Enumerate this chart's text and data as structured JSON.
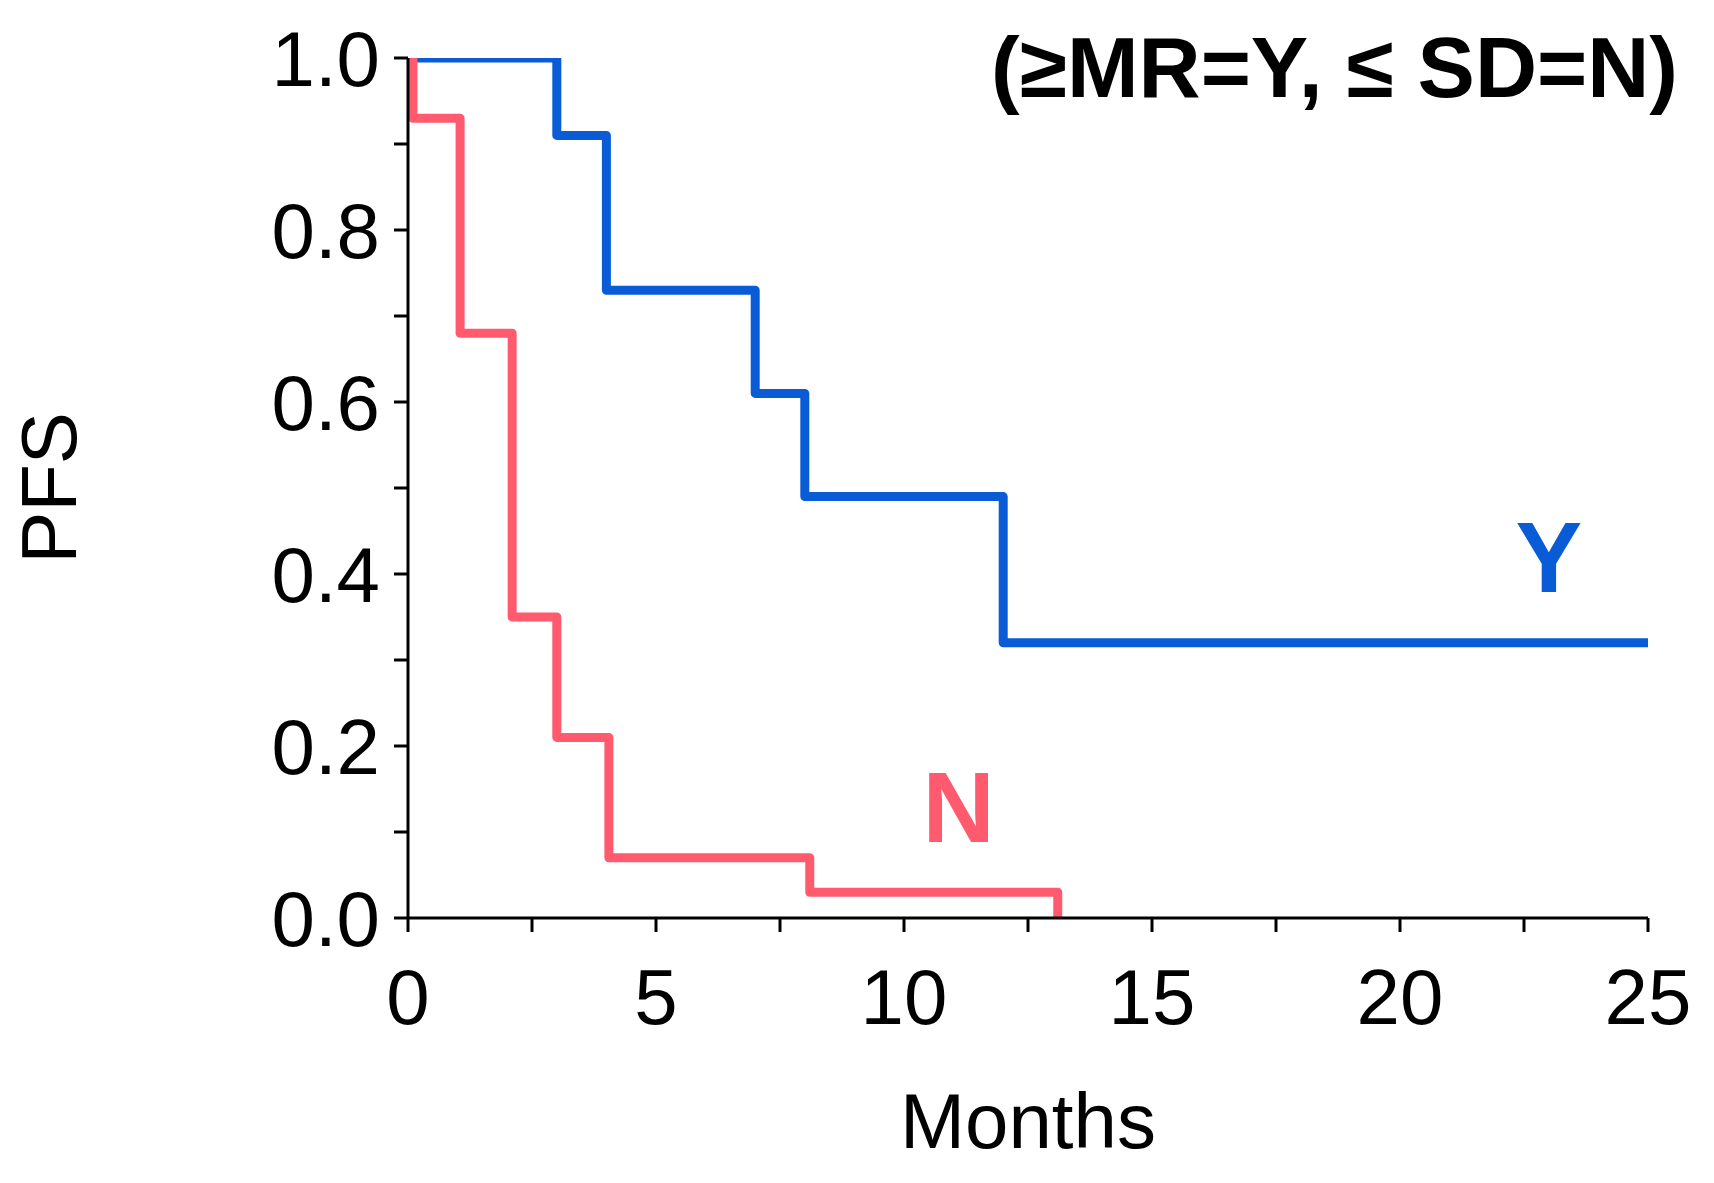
{
  "chart_data": {
    "type": "step",
    "title": "(≥MR=Y, ≤ SD=N)",
    "xlabel": "Months",
    "ylabel": "PFS",
    "xlim": [
      0,
      25
    ],
    "ylim": [
      0,
      1
    ],
    "xticks": [
      0,
      {
        "value": 2.5,
        "label": null
      },
      5,
      {
        "value": 7.5,
        "label": null
      },
      10,
      {
        "value": 12.5,
        "label": null
      },
      15,
      {
        "value": 17.5,
        "label": null
      },
      20,
      {
        "value": 22.5,
        "label": null
      },
      25
    ],
    "yticks": [
      {
        "value": 0,
        "label": "0.0"
      },
      {
        "value": 0.1,
        "label": null
      },
      0.2,
      {
        "value": 0.3,
        "label": null
      },
      0.4,
      {
        "value": 0.5,
        "label": null
      },
      0.6,
      {
        "value": 0.7,
        "label": null
      },
      0.8,
      {
        "value": 0.9,
        "label": null
      },
      {
        "value": 1,
        "label": "1.0"
      }
    ],
    "grid": false,
    "marker": "none",
    "line_style": "solid",
    "series": [
      {
        "name": "Y",
        "color": "#0a5bd6",
        "x": [
          0,
          3,
          4,
          7,
          8,
          12,
          25
        ],
        "values": [
          1,
          0.91,
          0.73,
          0.61,
          0.49,
          0.32,
          0.32
        ]
      },
      {
        "name": "N",
        "color": "#ff5a6e",
        "x": [
          0,
          0.1,
          1.05,
          2.1,
          3,
          4.05,
          8.1,
          13.1
        ],
        "values": [
          1,
          0.93,
          0.68,
          0.35,
          0.21,
          0.07,
          0.03,
          0
        ]
      }
    ]
  }
}
